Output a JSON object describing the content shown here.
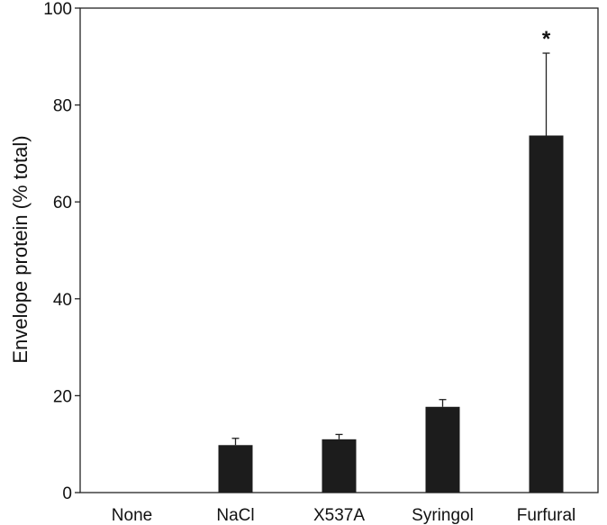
{
  "chart_data": {
    "type": "bar",
    "title": "",
    "xlabel": "",
    "ylabel": "Envelope protein (% total)",
    "categories": [
      "None",
      "NaCl",
      "X537A",
      "Syringol",
      "Furfural"
    ],
    "values": [
      0,
      9.8,
      11.0,
      17.7,
      73.7
    ],
    "errors": [
      0,
      1.4,
      1.0,
      1.5,
      17.0
    ],
    "ylim": [
      0,
      100
    ],
    "yticks": [
      0,
      20,
      40,
      60,
      80,
      100
    ],
    "bar_color": "#1c1c1c",
    "grid": false,
    "legend": "none",
    "annotations": [
      {
        "category": "Furfural",
        "text": "*"
      }
    ]
  }
}
